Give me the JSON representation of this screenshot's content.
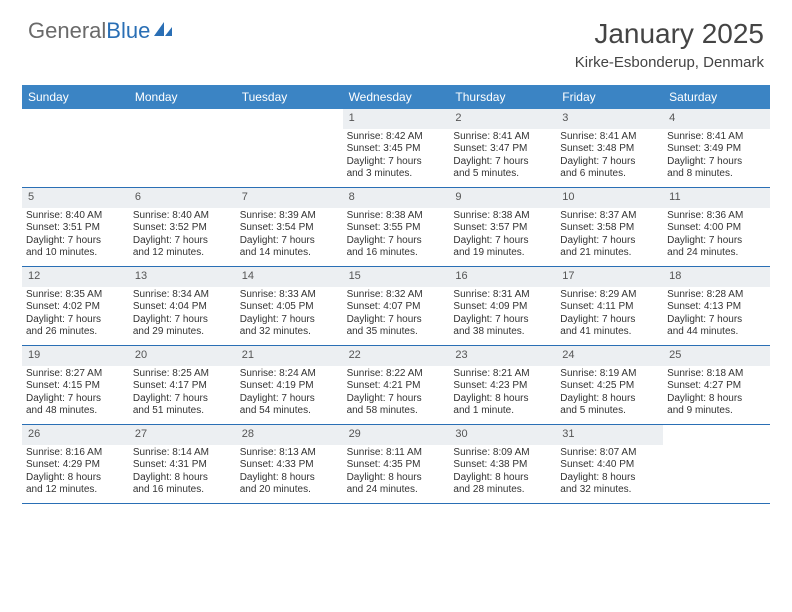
{
  "logo": {
    "text1": "General",
    "text2": "Blue"
  },
  "title": "January 2025",
  "location": "Kirke-Esbonderup, Denmark",
  "colors": {
    "header_bg": "#3b84c4",
    "header_text": "#ffffff",
    "daynum_bg": "#eceff2",
    "border": "#2a6fb5",
    "logo_accent": "#2a6fb5"
  },
  "day_names": [
    "Sunday",
    "Monday",
    "Tuesday",
    "Wednesday",
    "Thursday",
    "Friday",
    "Saturday"
  ],
  "weeks": [
    [
      null,
      null,
      null,
      {
        "n": "1",
        "sunrise": "8:42 AM",
        "sunset": "3:45 PM",
        "dl1": "Daylight: 7 hours",
        "dl2": "and 3 minutes."
      },
      {
        "n": "2",
        "sunrise": "8:41 AM",
        "sunset": "3:47 PM",
        "dl1": "Daylight: 7 hours",
        "dl2": "and 5 minutes."
      },
      {
        "n": "3",
        "sunrise": "8:41 AM",
        "sunset": "3:48 PM",
        "dl1": "Daylight: 7 hours",
        "dl2": "and 6 minutes."
      },
      {
        "n": "4",
        "sunrise": "8:41 AM",
        "sunset": "3:49 PM",
        "dl1": "Daylight: 7 hours",
        "dl2": "and 8 minutes."
      }
    ],
    [
      {
        "n": "5",
        "sunrise": "8:40 AM",
        "sunset": "3:51 PM",
        "dl1": "Daylight: 7 hours",
        "dl2": "and 10 minutes."
      },
      {
        "n": "6",
        "sunrise": "8:40 AM",
        "sunset": "3:52 PM",
        "dl1": "Daylight: 7 hours",
        "dl2": "and 12 minutes."
      },
      {
        "n": "7",
        "sunrise": "8:39 AM",
        "sunset": "3:54 PM",
        "dl1": "Daylight: 7 hours",
        "dl2": "and 14 minutes."
      },
      {
        "n": "8",
        "sunrise": "8:38 AM",
        "sunset": "3:55 PM",
        "dl1": "Daylight: 7 hours",
        "dl2": "and 16 minutes."
      },
      {
        "n": "9",
        "sunrise": "8:38 AM",
        "sunset": "3:57 PM",
        "dl1": "Daylight: 7 hours",
        "dl2": "and 19 minutes."
      },
      {
        "n": "10",
        "sunrise": "8:37 AM",
        "sunset": "3:58 PM",
        "dl1": "Daylight: 7 hours",
        "dl2": "and 21 minutes."
      },
      {
        "n": "11",
        "sunrise": "8:36 AM",
        "sunset": "4:00 PM",
        "dl1": "Daylight: 7 hours",
        "dl2": "and 24 minutes."
      }
    ],
    [
      {
        "n": "12",
        "sunrise": "8:35 AM",
        "sunset": "4:02 PM",
        "dl1": "Daylight: 7 hours",
        "dl2": "and 26 minutes."
      },
      {
        "n": "13",
        "sunrise": "8:34 AM",
        "sunset": "4:04 PM",
        "dl1": "Daylight: 7 hours",
        "dl2": "and 29 minutes."
      },
      {
        "n": "14",
        "sunrise": "8:33 AM",
        "sunset": "4:05 PM",
        "dl1": "Daylight: 7 hours",
        "dl2": "and 32 minutes."
      },
      {
        "n": "15",
        "sunrise": "8:32 AM",
        "sunset": "4:07 PM",
        "dl1": "Daylight: 7 hours",
        "dl2": "and 35 minutes."
      },
      {
        "n": "16",
        "sunrise": "8:31 AM",
        "sunset": "4:09 PM",
        "dl1": "Daylight: 7 hours",
        "dl2": "and 38 minutes."
      },
      {
        "n": "17",
        "sunrise": "8:29 AM",
        "sunset": "4:11 PM",
        "dl1": "Daylight: 7 hours",
        "dl2": "and 41 minutes."
      },
      {
        "n": "18",
        "sunrise": "8:28 AM",
        "sunset": "4:13 PM",
        "dl1": "Daylight: 7 hours",
        "dl2": "and 44 minutes."
      }
    ],
    [
      {
        "n": "19",
        "sunrise": "8:27 AM",
        "sunset": "4:15 PM",
        "dl1": "Daylight: 7 hours",
        "dl2": "and 48 minutes."
      },
      {
        "n": "20",
        "sunrise": "8:25 AM",
        "sunset": "4:17 PM",
        "dl1": "Daylight: 7 hours",
        "dl2": "and 51 minutes."
      },
      {
        "n": "21",
        "sunrise": "8:24 AM",
        "sunset": "4:19 PM",
        "dl1": "Daylight: 7 hours",
        "dl2": "and 54 minutes."
      },
      {
        "n": "22",
        "sunrise": "8:22 AM",
        "sunset": "4:21 PM",
        "dl1": "Daylight: 7 hours",
        "dl2": "and 58 minutes."
      },
      {
        "n": "23",
        "sunrise": "8:21 AM",
        "sunset": "4:23 PM",
        "dl1": "Daylight: 8 hours",
        "dl2": "and 1 minute."
      },
      {
        "n": "24",
        "sunrise": "8:19 AM",
        "sunset": "4:25 PM",
        "dl1": "Daylight: 8 hours",
        "dl2": "and 5 minutes."
      },
      {
        "n": "25",
        "sunrise": "8:18 AM",
        "sunset": "4:27 PM",
        "dl1": "Daylight: 8 hours",
        "dl2": "and 9 minutes."
      }
    ],
    [
      {
        "n": "26",
        "sunrise": "8:16 AM",
        "sunset": "4:29 PM",
        "dl1": "Daylight: 8 hours",
        "dl2": "and 12 minutes."
      },
      {
        "n": "27",
        "sunrise": "8:14 AM",
        "sunset": "4:31 PM",
        "dl1": "Daylight: 8 hours",
        "dl2": "and 16 minutes."
      },
      {
        "n": "28",
        "sunrise": "8:13 AM",
        "sunset": "4:33 PM",
        "dl1": "Daylight: 8 hours",
        "dl2": "and 20 minutes."
      },
      {
        "n": "29",
        "sunrise": "8:11 AM",
        "sunset": "4:35 PM",
        "dl1": "Daylight: 8 hours",
        "dl2": "and 24 minutes."
      },
      {
        "n": "30",
        "sunrise": "8:09 AM",
        "sunset": "4:38 PM",
        "dl1": "Daylight: 8 hours",
        "dl2": "and 28 minutes."
      },
      {
        "n": "31",
        "sunrise": "8:07 AM",
        "sunset": "4:40 PM",
        "dl1": "Daylight: 8 hours",
        "dl2": "and 32 minutes."
      },
      null
    ]
  ]
}
